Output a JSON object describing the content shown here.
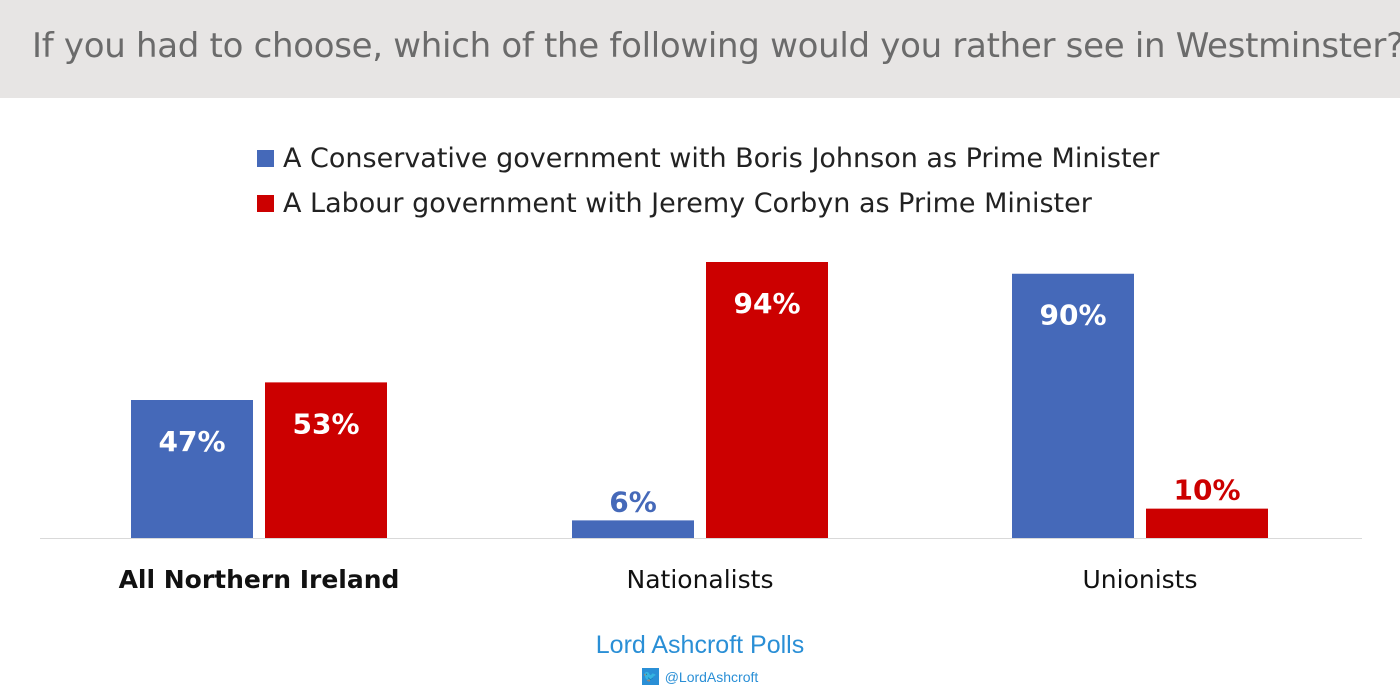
{
  "chart_data": {
    "type": "bar",
    "title": "If you had to choose, which of the following would you rather see in Westminster?",
    "categories": [
      "All Northern Ireland",
      "Nationalists",
      "Unionists"
    ],
    "series": [
      {
        "name": "A Conservative government with Boris Johnson as Prime Minister",
        "color": "#4569b9",
        "values": [
          47,
          6,
          90
        ]
      },
      {
        "name": "A Labour government with Jeremy Corbyn as Prime Minister",
        "color": "#cc0000",
        "values": [
          53,
          94,
          10
        ]
      }
    ],
    "ylim": [
      0,
      100
    ],
    "legend": "top",
    "grid": false,
    "value_suffix": "%"
  },
  "footer": {
    "brand": "Lord Ashcroft Polls",
    "twitter": "@LordAshcroft"
  }
}
